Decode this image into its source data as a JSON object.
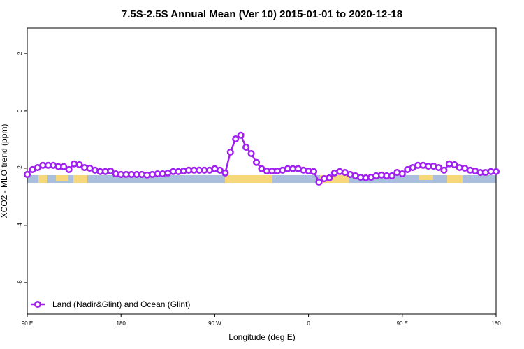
{
  "chart_data": {
    "type": "line",
    "title": "7.5S-2.5S Annual Mean (Ver 10)   2015-01-01 to 2020-12-18",
    "x_label": "Longitude (deg E)",
    "y_label": "XCO2 - MLO trend (ppm)",
    "xlim": [
      90,
      540
    ],
    "ylim": [
      -7.1,
      2.9
    ],
    "xticks": [
      {
        "value": 90,
        "label": "90 E"
      },
      180,
      {
        "value": 270,
        "label": "90 W"
      },
      {
        "value": 360,
        "label": "0"
      },
      {
        "value": 450,
        "label": "90 E"
      },
      {
        "value": 540,
        "label": "180"
      }
    ],
    "yticks": [
      -6,
      -4,
      -2,
      0,
      2
    ],
    "legend": "bottom-left",
    "x": [
      90,
      95,
      100,
      105,
      110,
      115,
      120,
      125,
      130,
      135,
      140,
      145,
      150,
      155,
      160,
      165,
      170,
      175,
      180,
      185,
      190,
      195,
      200,
      205,
      210,
      215,
      220,
      225,
      230,
      235,
      240,
      245,
      250,
      255,
      260,
      265,
      270,
      275,
      280,
      285,
      290,
      295,
      300,
      305,
      310,
      315,
      320,
      325,
      330,
      335,
      340,
      345,
      350,
      355,
      360,
      365,
      370,
      375,
      380,
      385,
      390,
      395,
      400,
      405,
      410,
      415,
      420,
      425,
      430,
      435,
      440,
      445,
      450,
      455,
      460,
      465,
      470,
      475,
      480,
      485,
      490,
      495,
      500,
      505,
      510,
      515,
      520,
      525,
      530,
      535,
      540
    ],
    "series": [
      {
        "name": "Land (Nadir&Glint) and Ocean (Glint)",
        "color": "#a020f0",
        "values": [
          -2.22,
          -2.05,
          -1.98,
          -1.9,
          -1.9,
          -1.9,
          -1.95,
          -1.95,
          -2.05,
          -1.85,
          -1.88,
          -1.98,
          -2.0,
          -2.07,
          -2.12,
          -2.12,
          -2.1,
          -2.2,
          -2.22,
          -2.22,
          -2.22,
          -2.22,
          -2.22,
          -2.24,
          -2.22,
          -2.2,
          -2.2,
          -2.17,
          -2.12,
          -2.12,
          -2.1,
          -2.07,
          -2.07,
          -2.07,
          -2.07,
          -2.07,
          -2.02,
          -2.07,
          -2.17,
          -1.44,
          -0.98,
          -0.85,
          -1.27,
          -1.49,
          -1.8,
          -2.02,
          -2.1,
          -2.1,
          -2.1,
          -2.07,
          -2.02,
          -2.02,
          -2.02,
          -2.07,
          -2.1,
          -2.12,
          -2.49,
          -2.37,
          -2.34,
          -2.17,
          -2.12,
          -2.15,
          -2.22,
          -2.27,
          -2.32,
          -2.34,
          -2.32,
          -2.27,
          -2.24,
          -2.27,
          -2.27,
          -2.15,
          -2.2,
          -2.05,
          -1.98,
          -1.9,
          -1.9,
          -1.93,
          -1.93,
          -1.98,
          -2.07,
          -1.85,
          -1.88,
          -1.98,
          -2.0,
          -2.07,
          -2.1,
          -2.15,
          -2.15,
          -2.12,
          -2.12
        ]
      }
    ]
  }
}
